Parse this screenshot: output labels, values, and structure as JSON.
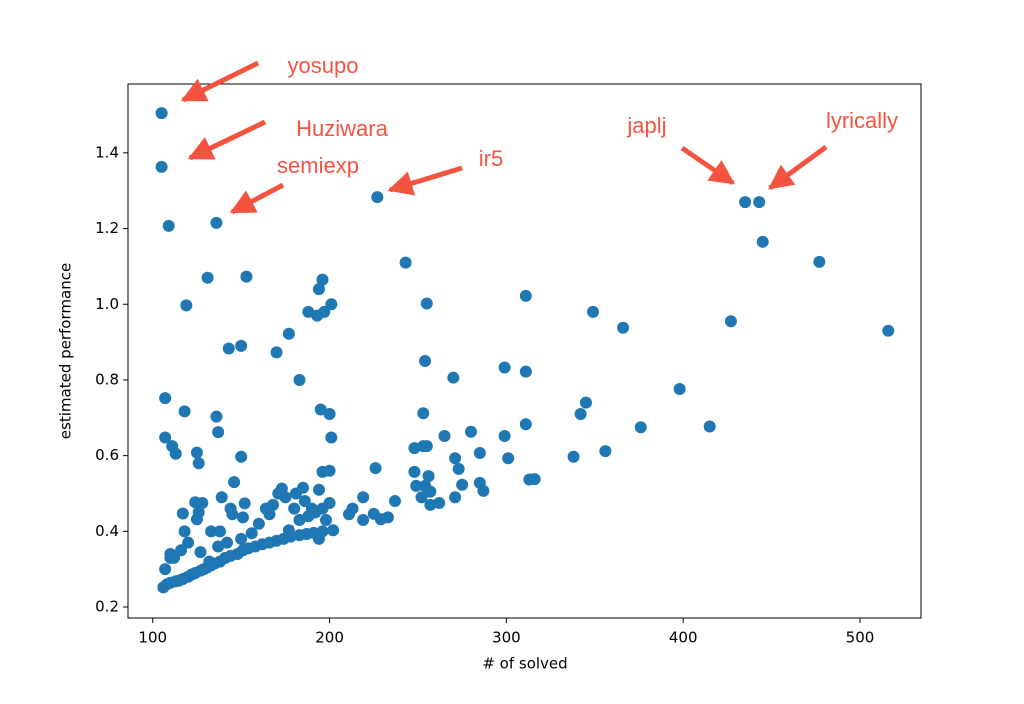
{
  "chart_data": {
    "type": "scatter",
    "xlabel": "# of solved",
    "ylabel": "estimated performance",
    "color": "#1f77b4",
    "annotation_color": "#f4533f",
    "annotations": [
      "yosupo",
      "Huziwara",
      "semiexp",
      "ir5",
      "japlj",
      "lyrically"
    ],
    "xlim": [
      86,
      534.5
    ],
    "ylim": [
      0.171,
      1.582
    ],
    "xticks": [
      100,
      200,
      300,
      400,
      500
    ],
    "yticks": [
      0.2,
      0.4,
      0.6,
      0.8,
      {
        "value": 1,
        "label": "1.0"
      },
      1.2,
      1.4
    ],
    "x": [
      105,
      105,
      136,
      227,
      435,
      443,
      109,
      131,
      153,
      119,
      143,
      150,
      170,
      177,
      183,
      188,
      193,
      194,
      196,
      197,
      201,
      243,
      255,
      311,
      349,
      366,
      445,
      477,
      427,
      516,
      107,
      118,
      136,
      137,
      107,
      111,
      113,
      125,
      126,
      150,
      195,
      200,
      201,
      196,
      200,
      226,
      254,
      253,
      270,
      299,
      311,
      311,
      299,
      301,
      280,
      265,
      253,
      248,
      255,
      285,
      271,
      273,
      256,
      248,
      338,
      342,
      345,
      356,
      376,
      398,
      415,
      313,
      316,
      285,
      287,
      275,
      271,
      262,
      257,
      252,
      249,
      254,
      257,
      237,
      233,
      229,
      225,
      219,
      211,
      213,
      219,
      106,
      108,
      110,
      113,
      115,
      117,
      120,
      122,
      124,
      127,
      129,
      131,
      133,
      135,
      138,
      141,
      144,
      148,
      151,
      154,
      158,
      162,
      166,
      170,
      174,
      178,
      183,
      187,
      191,
      196,
      202,
      107,
      110,
      112,
      116,
      118,
      120,
      117,
      124,
      126,
      128,
      125,
      133,
      138,
      139,
      144,
      145,
      146,
      150,
      152,
      151,
      156,
      160,
      164,
      166,
      168,
      171,
      173,
      175,
      177,
      180,
      181,
      183,
      185,
      186,
      188,
      190,
      192,
      194,
      196,
      198,
      200,
      194,
      132,
      137,
      142,
      127,
      110
    ],
    "y": [
      1.505,
      1.363,
      1.215,
      1.283,
      1.27,
      1.27,
      1.207,
      1.07,
      1.073,
      0.997,
      0.883,
      0.89,
      0.873,
      0.922,
      0.8,
      0.98,
      0.97,
      1.04,
      1.065,
      0.98,
      1.0,
      1.11,
      1.002,
      1.022,
      0.98,
      0.938,
      1.165,
      1.112,
      0.955,
      0.93,
      0.752,
      0.717,
      0.703,
      0.662,
      0.648,
      0.625,
      0.605,
      0.608,
      0.58,
      0.597,
      0.722,
      0.71,
      0.648,
      0.557,
      0.56,
      0.567,
      0.85,
      0.712,
      0.806,
      0.833,
      0.822,
      0.683,
      0.652,
      0.593,
      0.663,
      0.652,
      0.625,
      0.62,
      0.625,
      0.607,
      0.593,
      0.565,
      0.546,
      0.557,
      0.597,
      0.71,
      0.74,
      0.612,
      0.675,
      0.776,
      0.677,
      0.537,
      0.538,
      0.528,
      0.507,
      0.523,
      0.49,
      0.475,
      0.47,
      0.49,
      0.52,
      0.52,
      0.505,
      0.48,
      0.437,
      0.432,
      0.446,
      0.49,
      0.445,
      0.46,
      0.43,
      0.252,
      0.26,
      0.264,
      0.268,
      0.27,
      0.274,
      0.28,
      0.286,
      0.29,
      0.296,
      0.3,
      0.305,
      0.31,
      0.315,
      0.32,
      0.33,
      0.335,
      0.34,
      0.35,
      0.355,
      0.36,
      0.366,
      0.37,
      0.375,
      0.38,
      0.386,
      0.39,
      0.393,
      0.396,
      0.4,
      0.403,
      0.3,
      0.34,
      0.33,
      0.35,
      0.4,
      0.37,
      0.447,
      0.477,
      0.45,
      0.475,
      0.432,
      0.4,
      0.4,
      0.49,
      0.46,
      0.445,
      0.53,
      0.38,
      0.474,
      0.437,
      0.395,
      0.42,
      0.46,
      0.445,
      0.47,
      0.5,
      0.513,
      0.49,
      0.403,
      0.46,
      0.5,
      0.43,
      0.515,
      0.48,
      0.44,
      0.46,
      0.45,
      0.38,
      0.46,
      0.43,
      0.475,
      0.51,
      0.32,
      0.36,
      0.37,
      0.345,
      0.33
    ]
  }
}
